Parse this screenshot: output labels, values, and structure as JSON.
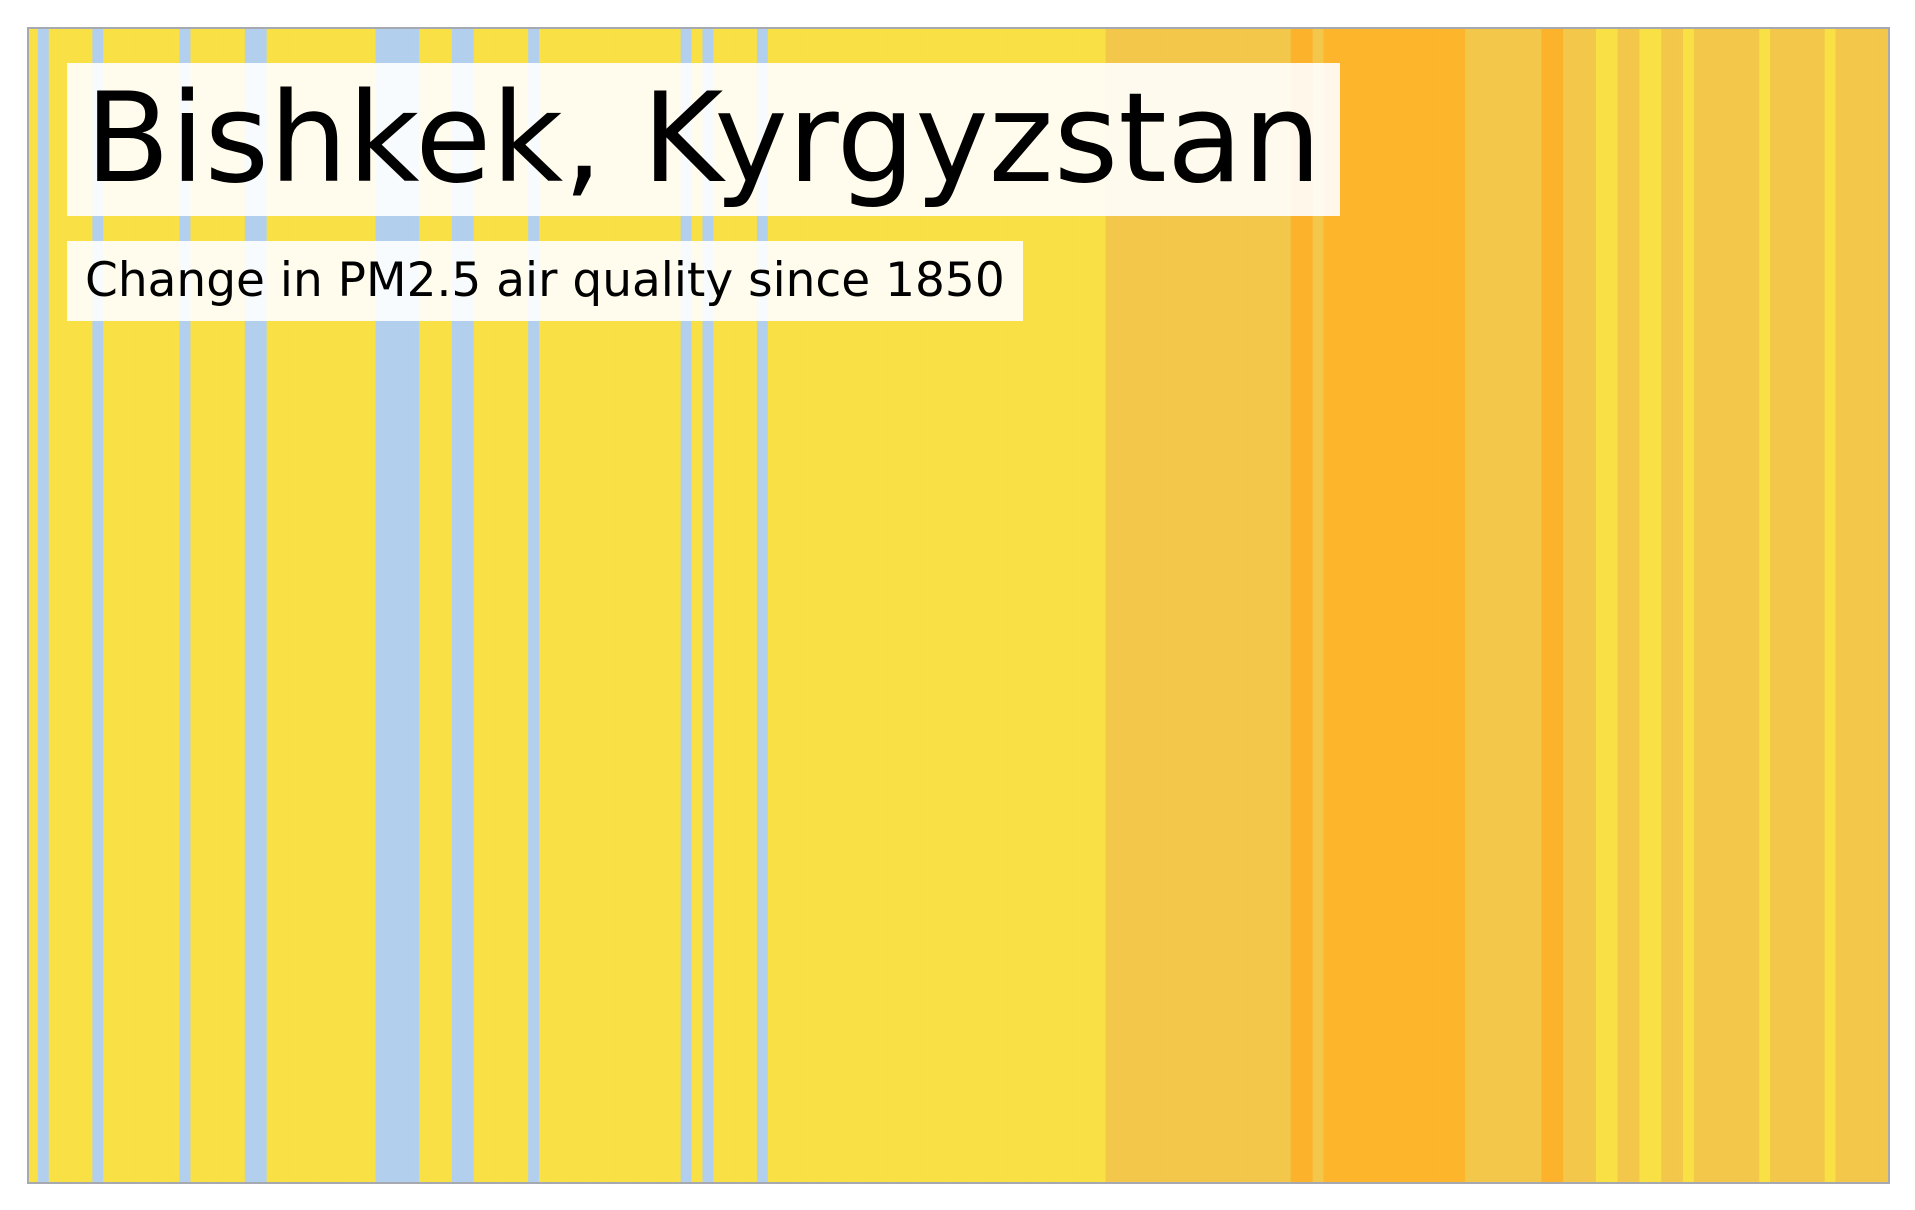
{
  "chart_data": {
    "type": "warming-stripes",
    "title": "Bishkek, Kyrgyzstan",
    "subtitle": "Change in PM2.5 air quality since 1850",
    "xlabel": "",
    "ylabel": "",
    "grid": false,
    "legend": "none",
    "palette": {
      "cleaner": "#b2cfee",
      "slightly_worse": "#f8e045",
      "worse": "#f2c74a",
      "much_worse": "#fdb52c",
      "much_worse_alt": "#fdb22c",
      "border": "#a6aab0"
    },
    "stripes": [
      {
        "count": 1,
        "level": "slightly_worse"
      },
      {
        "count": 1,
        "level": "cleaner"
      },
      {
        "count": 4,
        "level": "slightly_worse"
      },
      {
        "count": 1,
        "level": "cleaner"
      },
      {
        "count": 7,
        "level": "slightly_worse"
      },
      {
        "count": 1,
        "level": "cleaner"
      },
      {
        "count": 5,
        "level": "slightly_worse"
      },
      {
        "count": 2,
        "level": "cleaner"
      },
      {
        "count": 10,
        "level": "slightly_worse"
      },
      {
        "count": 4,
        "level": "cleaner"
      },
      {
        "count": 3,
        "level": "slightly_worse"
      },
      {
        "count": 2,
        "level": "cleaner"
      },
      {
        "count": 5,
        "level": "slightly_worse"
      },
      {
        "count": 1,
        "level": "cleaner"
      },
      {
        "count": 13,
        "level": "slightly_worse"
      },
      {
        "count": 1,
        "level": "cleaner"
      },
      {
        "count": 1,
        "level": "slightly_worse"
      },
      {
        "count": 1,
        "level": "cleaner"
      },
      {
        "count": 4,
        "level": "slightly_worse"
      },
      {
        "count": 1,
        "level": "cleaner"
      },
      {
        "count": 31,
        "level": "slightly_worse"
      },
      {
        "count": 17,
        "level": "worse"
      },
      {
        "count": 2,
        "level": "much_worse_alt"
      },
      {
        "count": 1,
        "level": "worse"
      },
      {
        "count": 13,
        "level": "much_worse"
      },
      {
        "count": 7,
        "level": "worse"
      },
      {
        "count": 2,
        "level": "much_worse_alt"
      },
      {
        "count": 3,
        "level": "worse"
      },
      {
        "count": 2,
        "level": "slightly_worse"
      },
      {
        "count": 2,
        "level": "worse"
      },
      {
        "count": 2,
        "level": "slightly_worse"
      },
      {
        "count": 2,
        "level": "worse"
      },
      {
        "count": 1,
        "level": "slightly_worse"
      },
      {
        "count": 6,
        "level": "worse"
      },
      {
        "count": 1,
        "level": "slightly_worse"
      },
      {
        "count": 5,
        "level": "worse"
      },
      {
        "count": 1,
        "level": "slightly_worse"
      },
      {
        "count": 5,
        "level": "worse"
      }
    ]
  }
}
